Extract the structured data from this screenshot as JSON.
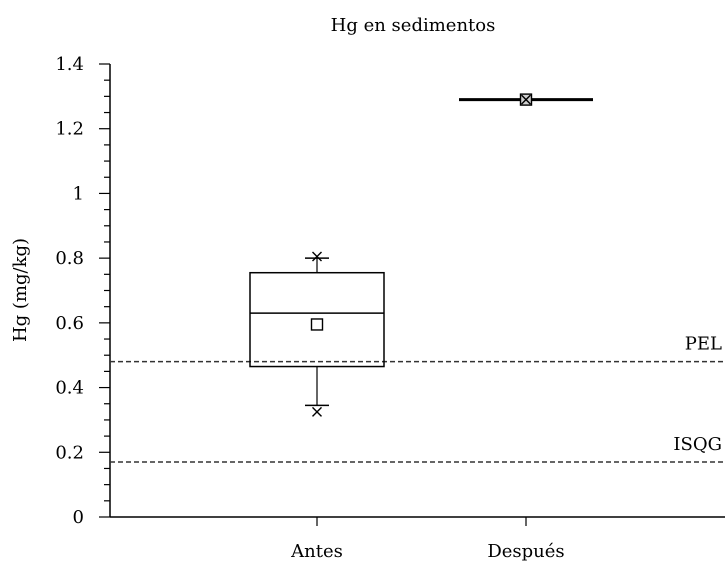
{
  "chart_data": {
    "type": "box",
    "title": "Hg en sedimentos",
    "ylabel": "Hg (mg/kg)",
    "xlabel": "",
    "ylim": [
      0,
      1.4
    ],
    "y_ticks": [
      "0",
      "0.2",
      "0.4",
      "0.6",
      "0.8",
      "1",
      "1.2",
      "1.4"
    ],
    "y_tick_values": [
      0,
      0.2,
      0.4,
      0.6,
      0.8,
      1,
      1.2,
      1.4
    ],
    "minor_tick_step": 0.05,
    "grid": false,
    "categories": [
      "Antes",
      "Después"
    ],
    "boxes": [
      {
        "category": "Antes",
        "whisker_low": 0.345,
        "q1": 0.465,
        "median": 0.63,
        "q3": 0.755,
        "whisker_high": 0.8,
        "mean": 0.595,
        "min": 0.325,
        "max": 0.805
      },
      {
        "category": "Después",
        "whisker_low": 1.29,
        "q1": 1.29,
        "median": 1.29,
        "q3": 1.29,
        "whisker_high": 1.29,
        "mean": 1.29,
        "min": 1.29,
        "max": 1.29
      }
    ],
    "reference_lines": [
      {
        "label": "PEL",
        "value": 0.48,
        "style": "dashed"
      },
      {
        "label": "ISQG",
        "value": 0.17,
        "style": "dashed"
      }
    ]
  }
}
